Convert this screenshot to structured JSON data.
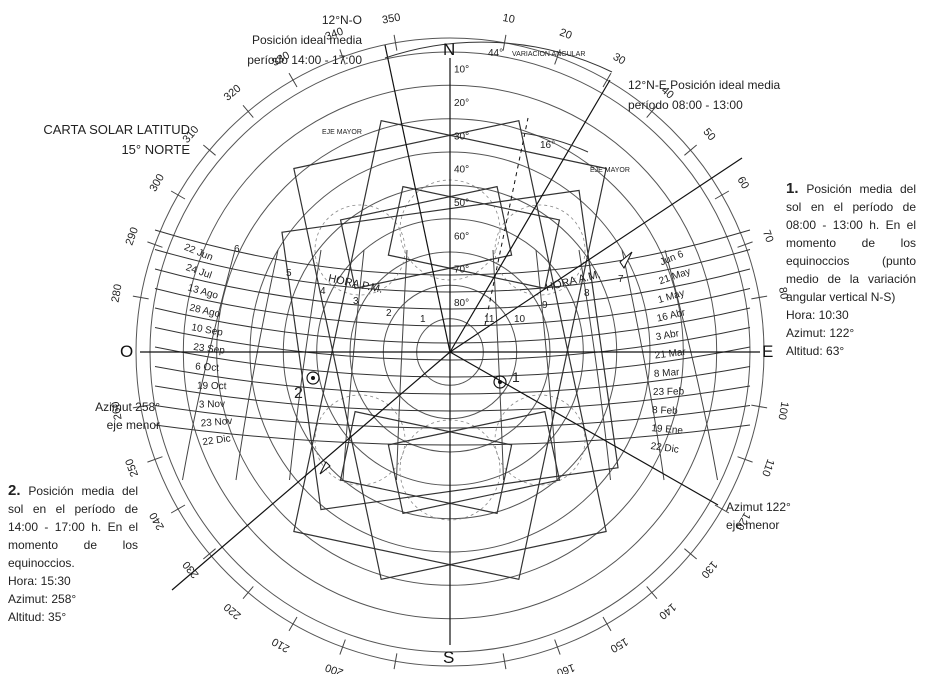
{
  "title": {
    "line1": "CARTA SOLAR LATITUD",
    "line2": "15° NORTE"
  },
  "cardinal": {
    "n": "N",
    "s": "S",
    "e": "E",
    "w": "O"
  },
  "top_left_note": {
    "heading": "12°N-O",
    "line1": "Posición ideal media",
    "line2": "período 14:00 - 17:00"
  },
  "top_right_note": {
    "line1": "12°N-E Posición ideal media",
    "line2": "período 08:00 - 13:00"
  },
  "diagram_labels": {
    "variacion": "VARIACION ANGULAR",
    "variacion_angle": "44°",
    "eje_mayor_left": "EJE MAYOR",
    "eje_mayor_right": "EJE MAYOR",
    "angle16": "16°",
    "hora_pm": "HORA P.M.",
    "hora_am": "HORA A.M.",
    "point1": "1",
    "point2": "2"
  },
  "azimuth_ticks": [
    "350",
    "340",
    "330",
    "320",
    "310",
    "300",
    "290",
    "280",
    "260",
    "250",
    "240",
    "230",
    "220",
    "210",
    "200",
    "190",
    "170",
    "160",
    "150",
    "140",
    "130",
    "120",
    "110",
    "100",
    "80",
    "70",
    "60",
    "50",
    "40",
    "30",
    "20",
    "10"
  ],
  "altitude_labels": [
    "10°",
    "20°",
    "30°",
    "40°",
    "50°",
    "60°",
    "70°",
    "80°"
  ],
  "pm_hours": [
    "6",
    "5",
    "4",
    "3",
    "2",
    "1"
  ],
  "am_hours": [
    "11",
    "10",
    "9",
    "8",
    "7"
  ],
  "date_labels_left": [
    "22 Jun",
    "24 Jul",
    "13 Ago",
    "28 Ago",
    "10 Sep",
    "23 Sep",
    "6 Oct",
    "19 Oct",
    "3 Nov",
    "23 Nov",
    "22 Dic"
  ],
  "date_labels_right": [
    "Jun 6",
    "21 May",
    "1 May",
    "16 Abr",
    "3 Abr",
    "21 Mar",
    "8 Mar",
    "23 Feb",
    "8 Feb",
    "19 Ene",
    "22 Dic"
  ],
  "azimut_left": {
    "line1": "Azimut 258°",
    "line2": "eje menor"
  },
  "azimut_right": {
    "line1": "Azimut 122°",
    "line2": "eje menor"
  },
  "note1": {
    "number": "1.",
    "text": "Posición media del sol en el período de 08:00 - 13:00 h. En el momento de los equinoccios (punto medio de la variación angular vertical N-S)",
    "hora": "Hora: 10:30",
    "azimut": "Azimut: 122°",
    "altitud": "Altitud: 63°"
  },
  "note2": {
    "number": "2.",
    "text": "Posición media del sol en el período de 14:00 - 17:00 h. En el momento de los equinoccios.",
    "hora": "Hora: 15:30",
    "azimut": "Azimut: 258°",
    "altitud": "Altitud: 35°"
  }
}
